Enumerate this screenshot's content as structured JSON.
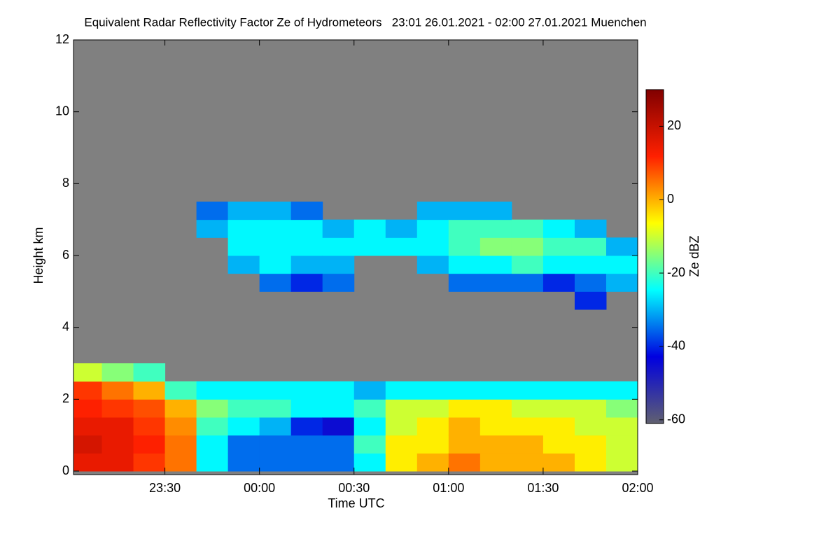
{
  "chart_data": {
    "type": "heatmap",
    "title": "Equivalent Radar Reflectivity Factor Ze of Hydrometeors   23:01 26.01.2021 - 02:00 27.01.2021 Muenchen",
    "x_label": "Time UTC",
    "y_label": "Height km",
    "xlim": [
      23.0167,
      26
    ],
    "xticks": [
      {
        "value": 23.5,
        "label": "23:30"
      },
      {
        "value": 24,
        "label": "00:00"
      },
      {
        "value": 24.5,
        "label": "00:30"
      },
      {
        "value": 25,
        "label": "01:00"
      },
      {
        "value": 25.5,
        "label": "01:30"
      },
      {
        "value": 26,
        "label": "02:00"
      }
    ],
    "ylim": [
      0,
      12
    ],
    "yticks": [
      0,
      2,
      4,
      6,
      8,
      10,
      12
    ],
    "xbins": [
      23.0167,
      23.1667,
      23.3333,
      23.5,
      23.6667,
      23.8333,
      24,
      24.1667,
      24.3333,
      24.5,
      24.6667,
      24.8333,
      25,
      25.1667,
      25.3333,
      25.5,
      25.6667,
      25.8333,
      26
    ],
    "ybins": [
      0,
      0.5,
      1,
      1.5,
      2,
      2.5,
      3,
      3.5,
      4,
      4.5,
      5,
      5.5,
      6,
      6.5,
      7,
      7.5,
      8
    ],
    "values": [
      [
        15,
        18,
        15,
        12,
        10,
        -10,
        null,
        null,
        null,
        null,
        null,
        null,
        null,
        null,
        null,
        null
      ],
      [
        15,
        15,
        15,
        10,
        5,
        -15,
        null,
        null,
        null,
        null,
        null,
        null,
        null,
        null,
        null,
        null
      ],
      [
        10,
        12,
        10,
        8,
        0,
        -20,
        null,
        null,
        null,
        null,
        null,
        null,
        null,
        null,
        null,
        null
      ],
      [
        5,
        5,
        3,
        0,
        -20,
        null,
        null,
        null,
        null,
        null,
        null,
        null,
        null,
        null,
        null,
        null
      ],
      [
        -25,
        -25,
        -20,
        -15,
        -25,
        null,
        null,
        null,
        null,
        null,
        null,
        null,
        null,
        -30,
        -35,
        null
      ],
      [
        -35,
        -35,
        -25,
        -20,
        -25,
        null,
        null,
        null,
        null,
        null,
        null,
        -30,
        -25,
        -25,
        -30,
        null
      ],
      [
        -35,
        -35,
        -30,
        -20,
        -25,
        null,
        null,
        null,
        null,
        null,
        -35,
        -25,
        -25,
        -25,
        -30,
        null
      ],
      [
        -35,
        -35,
        -40,
        -25,
        -25,
        null,
        null,
        null,
        null,
        null,
        -40,
        -30,
        -25,
        -25,
        -35,
        null
      ],
      [
        -35,
        -35,
        -45,
        -25,
        -25,
        null,
        null,
        null,
        null,
        null,
        -35,
        -30,
        -25,
        -30,
        null,
        null
      ],
      [
        -25,
        -20,
        -25,
        -20,
        -30,
        null,
        null,
        null,
        null,
        null,
        null,
        null,
        -25,
        -25,
        null,
        null
      ],
      [
        -5,
        -5,
        -10,
        -10,
        -25,
        null,
        null,
        null,
        null,
        null,
        null,
        null,
        -25,
        -30,
        null,
        null
      ],
      [
        0,
        -5,
        -5,
        -10,
        -25,
        null,
        null,
        null,
        null,
        null,
        null,
        -30,
        -25,
        -25,
        -30,
        null
      ],
      [
        5,
        0,
        0,
        -5,
        -25,
        null,
        null,
        null,
        null,
        null,
        -35,
        -25,
        -20,
        -20,
        -30,
        null
      ],
      [
        0,
        0,
        -5,
        -5,
        -25,
        null,
        null,
        null,
        null,
        null,
        -35,
        -25,
        -15,
        -20,
        -30,
        null
      ],
      [
        0,
        0,
        -5,
        -10,
        -25,
        null,
        null,
        null,
        null,
        null,
        -35,
        -20,
        -15,
        -20,
        null,
        null
      ],
      [
        0,
        -5,
        -5,
        -10,
        -25,
        null,
        null,
        null,
        null,
        null,
        -40,
        -25,
        -20,
        -25,
        null,
        null
      ],
      [
        -5,
        -5,
        -10,
        -10,
        -25,
        null,
        null,
        null,
        null,
        -40,
        -35,
        -25,
        -20,
        -30,
        null,
        null
      ],
      [
        -10,
        -10,
        -10,
        -15,
        -25,
        null,
        null,
        null,
        null,
        null,
        -30,
        -25,
        -30,
        null,
        null,
        null
      ]
    ],
    "background": "#808080",
    "colormap": [
      "#606070",
      "#0000e0",
      "#00ffff",
      "#ffff00",
      "#ff2000",
      "#800000"
    ],
    "colorbar_label": "Ze dBZ",
    "clim": [
      -61,
      30
    ],
    "cticks": [
      -60,
      -40,
      -20,
      0,
      20
    ]
  }
}
